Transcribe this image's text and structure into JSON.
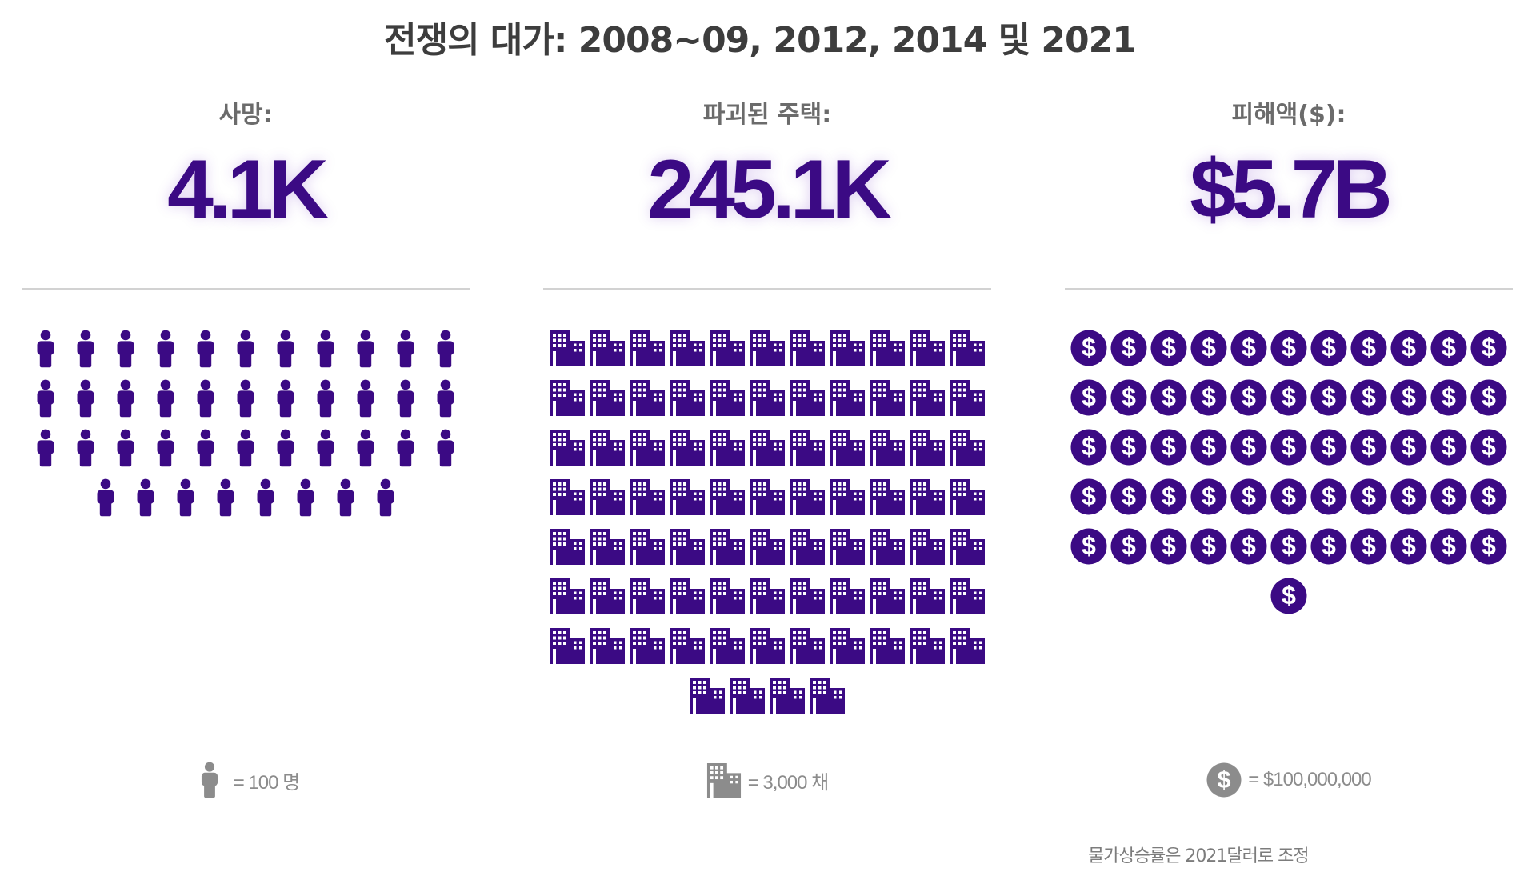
{
  "title": "전쟁의 대가: 2008~09, 2012, 2014 및 2021",
  "colors": {
    "accent": "#3b0a84",
    "legend_icon": "#8c8c8c",
    "rule": "#d2d2d2"
  },
  "columns": [
    {
      "id": "deaths",
      "label": "사망:",
      "value": "4.1K",
      "icon": "person-icon",
      "icon_count": 41,
      "legend": "= 100 명"
    },
    {
      "id": "houses",
      "label": "파괴된 주택:",
      "value": "245.1K",
      "icon": "building-icon",
      "icon_count": 81,
      "legend": "= 3,000 채"
    },
    {
      "id": "damage",
      "label": "피해액($):",
      "value": "$5.7B",
      "icon": "dollar-coin-icon",
      "icon_count": 56,
      "legend": "= $100,000,000"
    }
  ],
  "footnote": "물가상승률은 2021달러로 조정"
}
